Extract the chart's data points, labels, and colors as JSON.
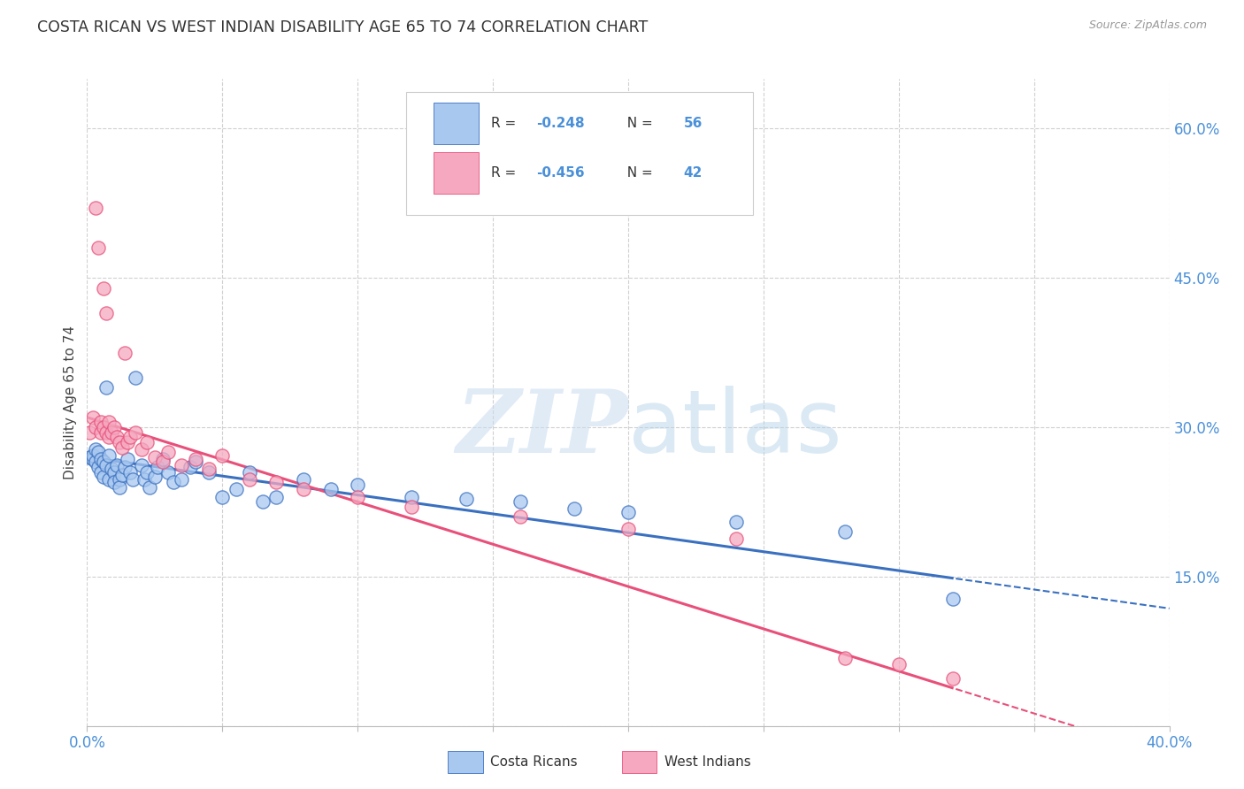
{
  "title": "COSTA RICAN VS WEST INDIAN DISABILITY AGE 65 TO 74 CORRELATION CHART",
  "source": "Source: ZipAtlas.com",
  "ylabel": "Disability Age 65 to 74",
  "xlim": [
    0.0,
    0.4
  ],
  "ylim": [
    0.0,
    0.65
  ],
  "xticks": [
    0.0,
    0.05,
    0.1,
    0.15,
    0.2,
    0.25,
    0.3,
    0.35,
    0.4
  ],
  "yticks_right": [
    0.0,
    0.15,
    0.3,
    0.45,
    0.6
  ],
  "blue_color": "#a8c8f0",
  "pink_color": "#f5a8c0",
  "blue_line_color": "#3a70c0",
  "pink_line_color": "#e8507a",
  "text_color": "#4a90d9",
  "R_blue": -0.248,
  "N_blue": 56,
  "R_pink": -0.456,
  "N_pink": 42,
  "blue_intercept": 0.27,
  "blue_slope": -0.38,
  "pink_intercept": 0.31,
  "pink_slope": -0.85,
  "costa_rican_x": [
    0.001,
    0.002,
    0.002,
    0.003,
    0.003,
    0.004,
    0.004,
    0.005,
    0.005,
    0.006,
    0.006,
    0.007,
    0.007,
    0.008,
    0.008,
    0.009,
    0.01,
    0.01,
    0.011,
    0.012,
    0.012,
    0.013,
    0.014,
    0.015,
    0.016,
    0.017,
    0.018,
    0.02,
    0.021,
    0.022,
    0.023,
    0.025,
    0.026,
    0.028,
    0.03,
    0.032,
    0.035,
    0.038,
    0.04,
    0.045,
    0.05,
    0.055,
    0.06,
    0.065,
    0.07,
    0.08,
    0.09,
    0.1,
    0.12,
    0.14,
    0.16,
    0.18,
    0.2,
    0.24,
    0.28,
    0.32
  ],
  "costa_rican_y": [
    0.27,
    0.268,
    0.272,
    0.265,
    0.278,
    0.26,
    0.275,
    0.255,
    0.268,
    0.25,
    0.265,
    0.34,
    0.262,
    0.248,
    0.272,
    0.258,
    0.255,
    0.245,
    0.262,
    0.248,
    0.24,
    0.252,
    0.26,
    0.268,
    0.255,
    0.248,
    0.35,
    0.262,
    0.248,
    0.255,
    0.24,
    0.25,
    0.26,
    0.268,
    0.255,
    0.245,
    0.248,
    0.26,
    0.265,
    0.255,
    0.23,
    0.238,
    0.255,
    0.225,
    0.23,
    0.248,
    0.238,
    0.242,
    0.23,
    0.228,
    0.225,
    0.218,
    0.215,
    0.205,
    0.195,
    0.128
  ],
  "west_indian_x": [
    0.001,
    0.002,
    0.003,
    0.003,
    0.004,
    0.005,
    0.005,
    0.006,
    0.006,
    0.007,
    0.007,
    0.008,
    0.008,
    0.009,
    0.01,
    0.011,
    0.012,
    0.013,
    0.014,
    0.015,
    0.016,
    0.018,
    0.02,
    0.022,
    0.025,
    0.028,
    0.03,
    0.035,
    0.04,
    0.045,
    0.05,
    0.06,
    0.07,
    0.08,
    0.1,
    0.12,
    0.16,
    0.2,
    0.24,
    0.28,
    0.3,
    0.32
  ],
  "west_indian_y": [
    0.295,
    0.31,
    0.3,
    0.52,
    0.48,
    0.295,
    0.305,
    0.3,
    0.44,
    0.415,
    0.295,
    0.29,
    0.305,
    0.295,
    0.3,
    0.29,
    0.285,
    0.28,
    0.375,
    0.285,
    0.29,
    0.295,
    0.278,
    0.285,
    0.27,
    0.265,
    0.275,
    0.262,
    0.268,
    0.258,
    0.272,
    0.248,
    0.245,
    0.238,
    0.23,
    0.22,
    0.21,
    0.198,
    0.188,
    0.068,
    0.062,
    0.048
  ],
  "watermark_zip": "ZIP",
  "watermark_atlas": "atlas",
  "background_color": "#ffffff",
  "grid_color": "#d0d0d0"
}
